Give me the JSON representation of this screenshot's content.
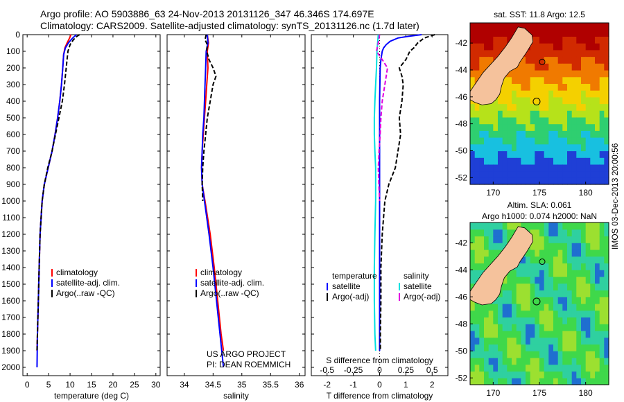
{
  "header": {
    "line1": "Argo profile: AO 5903886_63 24-Nov-2013 20131126_347 46.346S 174.697E",
    "line2": "Climatology: CARS2009. Satellite-adjusted climatology: synTS_20131126.nc (1.7d later)"
  },
  "footer_stamp": "IMOS 03-Dec-2013 20:00:56",
  "chart_data": [
    {
      "type": "line",
      "id": "temperature-profile",
      "xlabel": "temperature (deg C)",
      "ylabel": "",
      "xlim": [
        -1,
        31
      ],
      "ylim": [
        2050,
        0
      ],
      "xticks": [
        0,
        5,
        10,
        15,
        20,
        25,
        30
      ],
      "yticks": [
        0,
        100,
        200,
        300,
        400,
        500,
        600,
        700,
        800,
        900,
        1000,
        1100,
        1200,
        1300,
        1400,
        1500,
        1600,
        1700,
        1800,
        1900,
        2000
      ],
      "legend": [
        "climatology",
        "satellite-adj. clim.",
        "Argo(..raw -QC)"
      ],
      "series": [
        {
          "name": "climatology",
          "color": "#ff0000",
          "dash": "",
          "depth": [
            0,
            20,
            50,
            80,
            120,
            200,
            300,
            400,
            500,
            600,
            700,
            800,
            900,
            1000,
            1200,
            1400,
            1600,
            1800,
            1900
          ],
          "values": [
            10.2,
            9.9,
            9.3,
            8.8,
            8.5,
            8.3,
            8.0,
            7.6,
            7.1,
            6.5,
            5.8,
            4.9,
            4.0,
            3.5,
            3.0,
            2.8,
            2.6,
            2.4,
            2.3
          ]
        },
        {
          "name": "satellite-adj. clim.",
          "color": "#0000ff",
          "dash": "",
          "depth": [
            0,
            20,
            50,
            80,
            120,
            200,
            300,
            400,
            500,
            600,
            700,
            800,
            900,
            1000,
            1200,
            1400,
            1600,
            1800,
            2000
          ],
          "values": [
            11.5,
            10.6,
            9.6,
            8.9,
            8.5,
            8.3,
            8.0,
            7.6,
            7.1,
            6.5,
            5.8,
            4.9,
            4.0,
            3.5,
            3.0,
            2.8,
            2.6,
            2.4,
            2.3
          ]
        },
        {
          "name": "Argo(..raw -QC)",
          "color": "#000000",
          "dash": "6,3",
          "depth": [
            0,
            10,
            30,
            60,
            100,
            150,
            200,
            300,
            400,
            500,
            600,
            700,
            800,
            900,
            1000,
            1200,
            1400,
            1600,
            1800,
            1900
          ],
          "values": [
            12.2,
            11.6,
            10.8,
            10.0,
            9.5,
            9.3,
            9.1,
            8.7,
            8.2,
            7.4,
            6.6,
            5.8,
            4.8,
            4.0,
            3.5,
            3.0,
            2.8,
            2.6,
            2.4,
            2.3
          ]
        }
      ]
    },
    {
      "type": "line",
      "id": "salinity-profile",
      "xlabel": "salinity",
      "xlim": [
        33.7,
        36.1
      ],
      "ylim": [
        2050,
        0
      ],
      "xticks": [
        34,
        34.5,
        35,
        35.5,
        36
      ],
      "legend": [
        "climatology",
        "satellite-adj. clim.",
        "Argo(..raw -QC)"
      ],
      "annotation": [
        "US ARGO PROJECT",
        "PI: DEAN ROEMMICH"
      ],
      "series": [
        {
          "name": "climatology",
          "color": "#ff0000",
          "dash": "",
          "depth": [
            0,
            50,
            100,
            200,
            300,
            400,
            500,
            600,
            700,
            800,
            900,
            1000,
            1200,
            1400,
            1600,
            1800,
            1900
          ],
          "values": [
            34.4,
            34.42,
            34.4,
            34.41,
            34.39,
            34.37,
            34.35,
            34.33,
            34.31,
            34.3,
            34.31,
            34.36,
            34.45,
            34.52,
            34.58,
            34.64,
            34.68
          ]
        },
        {
          "name": "satellite-adj. clim.",
          "color": "#0000ff",
          "dash": "",
          "depth": [
            0,
            50,
            100,
            200,
            300,
            400,
            500,
            600,
            700,
            800,
            900,
            1000,
            1200,
            1400,
            1600,
            1800,
            2000
          ],
          "values": [
            34.4,
            34.41,
            34.38,
            34.37,
            34.36,
            34.35,
            34.34,
            34.32,
            34.31,
            34.3,
            34.31,
            34.35,
            34.43,
            34.5,
            34.56,
            34.62,
            34.68
          ]
        },
        {
          "name": "Argo(..raw -QC)",
          "color": "#000000",
          "dash": "6,3",
          "depth": [
            0,
            30,
            60,
            100,
            150,
            200,
            250,
            300,
            400,
            500,
            600,
            700,
            800,
            900,
            1000
          ],
          "values": [
            34.38,
            34.36,
            34.4,
            34.39,
            34.43,
            34.5,
            34.55,
            34.5,
            34.45,
            34.4,
            34.37,
            34.34,
            34.32,
            34.31,
            34.32
          ]
        }
      ]
    },
    {
      "type": "line",
      "id": "difference-profile",
      "xlabel": "T difference from climatology",
      "xlabel_top": "S difference from climatology",
      "xlim": [
        -2.6,
        2.6
      ],
      "ylim": [
        2050,
        0
      ],
      "xticks": [
        -2,
        -1,
        0,
        1,
        2
      ],
      "xticks_top_labels": [
        "-0.5",
        "-0.25",
        "0",
        "0.25",
        "0.5"
      ],
      "legend_left_title": "temperature",
      "legend_right_title": "salinity",
      "legend_left": [
        "satellite",
        "Argo(-adj)"
      ],
      "legend_right": [
        "satellite",
        "Argo(-adj)"
      ],
      "series": [
        {
          "name": "T satellite",
          "color": "#0000ff",
          "dash": "",
          "depth": [
            0,
            10,
            20,
            40,
            60,
            80,
            100,
            150,
            200,
            400,
            600,
            800,
            1000,
            1400,
            1800,
            1900
          ],
          "values": [
            1.6,
            1.1,
            0.7,
            0.4,
            0.25,
            0.15,
            0.1,
            0.05,
            0.02,
            0.0,
            0.0,
            0.0,
            0.0,
            0.0,
            0.0,
            0.0
          ]
        },
        {
          "name": "T Argo(-adj)",
          "color": "#000000",
          "dash": "6,3",
          "depth": [
            0,
            20,
            50,
            80,
            100,
            150,
            200,
            250,
            300,
            400,
            500,
            600,
            700,
            800,
            900,
            1000,
            1200,
            1400,
            1600,
            1800,
            1900
          ],
          "values": [
            2.1,
            1.7,
            1.45,
            1.3,
            1.15,
            1.0,
            0.75,
            0.85,
            0.9,
            0.85,
            0.75,
            0.8,
            0.7,
            0.6,
            0.35,
            0.2,
            0.1,
            0.05,
            0.05,
            0.03,
            0.03
          ]
        },
        {
          "name": "S satellite",
          "color": "#00e0e0",
          "dash": "",
          "depth": [
            0,
            100,
            200,
            300,
            400,
            500,
            600,
            700,
            800,
            1000,
            1200,
            1400,
            1600,
            1800,
            1900
          ],
          "values": [
            -0.05,
            -0.1,
            -0.12,
            -0.15,
            -0.18,
            -0.2,
            -0.2,
            -0.18,
            -0.15,
            -0.15,
            -0.18,
            -0.2,
            -0.2,
            -0.18,
            -0.15
          ]
        },
        {
          "name": "S Argo(-adj)",
          "color": "#e000e0",
          "dash": "6,3",
          "depth": [
            0,
            50,
            100,
            150,
            200,
            300,
            400,
            500,
            600,
            700,
            800,
            900,
            1000
          ],
          "values": [
            0.0,
            -0.05,
            -0.12,
            0.1,
            0.3,
            0.2,
            0.1,
            0.05,
            0.02,
            -0.02,
            -0.05,
            -0.03,
            0.0
          ]
        }
      ]
    },
    {
      "type": "heatmap",
      "id": "sst-map",
      "title": "sat. SST: 11.8 Argo: 12.5",
      "xticks": [
        170,
        175,
        180
      ],
      "yticks": [
        -42,
        -44,
        -46,
        -48,
        -50,
        -52
      ],
      "xlim": [
        167.5,
        182.5
      ],
      "ylim": [
        -52.5,
        -40.5
      ],
      "argo_location": [
        174.697,
        -46.346
      ],
      "colorscale": [
        "#1f3fd6",
        "#18c0e0",
        "#2fcf70",
        "#b6e21a",
        "#f4d000",
        "#f07a00",
        "#d12a00",
        "#b00000"
      ]
    },
    {
      "type": "heatmap",
      "id": "sla-map",
      "title": [
        "Altim. SLA: 0.061",
        "Argo h1000: 0.074 h2000: NaN"
      ],
      "xticks": [
        170,
        175,
        180
      ],
      "yticks": [
        -42,
        -44,
        -46,
        -48,
        -50,
        -52
      ],
      "xlim": [
        167.5,
        182.5
      ],
      "ylim": [
        -52.5,
        -40.5
      ],
      "argo_location": [
        174.697,
        -46.346
      ],
      "colorscale": [
        "#1f6fd0",
        "#2fd0a0",
        "#3fd84a",
        "#9ce030"
      ]
    }
  ]
}
